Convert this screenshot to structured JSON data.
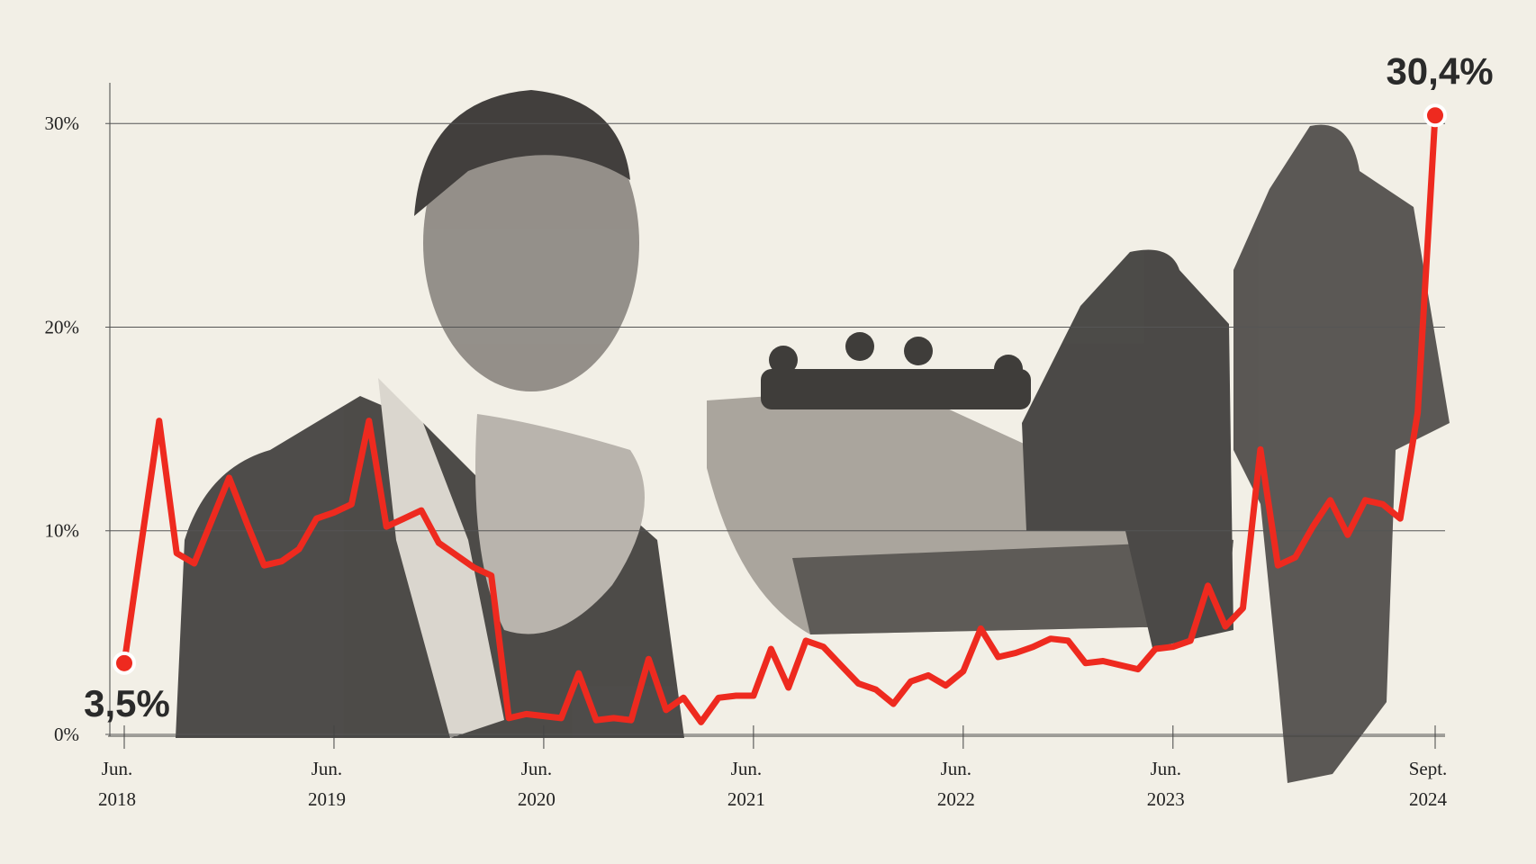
{
  "chart_data": {
    "type": "line",
    "color": "#ee2a1f",
    "grid": true,
    "x": [
      "2018-06",
      "2018-07",
      "2018-08",
      "2018-09",
      "2018-10",
      "2018-11",
      "2018-12",
      "2019-01",
      "2019-02",
      "2019-03",
      "2019-04",
      "2019-05",
      "2019-06",
      "2019-07",
      "2019-08",
      "2019-09",
      "2019-10",
      "2019-11",
      "2019-12",
      "2020-01",
      "2020-02",
      "2020-03",
      "2020-04",
      "2020-05",
      "2020-06",
      "2020-07",
      "2020-08",
      "2020-09",
      "2020-10",
      "2020-11",
      "2020-12",
      "2021-01",
      "2021-02",
      "2021-03",
      "2021-04",
      "2021-05",
      "2021-06",
      "2021-07",
      "2021-08",
      "2021-09",
      "2021-10",
      "2021-11",
      "2021-12",
      "2022-01",
      "2022-02",
      "2022-03",
      "2022-04",
      "2022-05",
      "2022-06",
      "2022-07",
      "2022-08",
      "2022-09",
      "2022-10",
      "2022-11",
      "2022-12",
      "2023-01",
      "2023-02",
      "2023-03",
      "2023-04",
      "2023-05",
      "2023-06",
      "2023-07",
      "2023-08",
      "2023-09",
      "2023-10",
      "2023-11",
      "2023-12",
      "2024-01",
      "2024-02",
      "2024-03",
      "2024-04",
      "2024-05",
      "2024-06",
      "2024-07",
      "2024-08",
      "2024-09"
    ],
    "values": [
      3.5,
      9.5,
      15.4,
      8.9,
      8.4,
      10.5,
      12.6,
      10.4,
      8.3,
      8.5,
      9.1,
      10.6,
      10.9,
      11.3,
      15.4,
      10.2,
      10.6,
      11.0,
      9.4,
      8.8,
      8.2,
      7.8,
      0.8,
      1.0,
      0.9,
      0.8,
      3.0,
      0.7,
      0.8,
      0.7,
      3.7,
      1.2,
      1.8,
      0.6,
      1.8,
      1.9,
      1.9,
      4.2,
      2.3,
      4.6,
      4.3,
      3.4,
      2.5,
      2.2,
      1.5,
      2.6,
      2.9,
      2.4,
      3.1,
      5.2,
      3.8,
      4.0,
      4.3,
      4.7,
      4.6,
      3.5,
      3.6,
      3.4,
      3.2,
      4.2,
      4.3,
      4.6,
      7.3,
      5.3,
      6.2,
      14.0,
      8.3,
      8.7,
      10.2,
      11.5,
      9.8,
      11.5,
      11.3,
      10.6,
      15.8,
      30.4
    ],
    "value_labels": [
      "3,5%",
      null,
      null,
      null,
      null,
      null,
      null,
      null,
      null,
      null,
      null,
      null,
      null,
      null,
      null,
      null,
      null,
      null,
      null,
      null,
      null,
      null,
      null,
      null,
      null,
      null,
      null,
      null,
      null,
      null,
      null,
      null,
      null,
      null,
      null,
      null,
      null,
      null,
      null,
      null,
      null,
      null,
      null,
      null,
      null,
      null,
      null,
      null,
      null,
      null,
      null,
      null,
      null,
      null,
      null,
      null,
      null,
      null,
      null,
      null,
      null,
      null,
      null,
      null,
      null,
      null,
      null,
      null,
      null,
      null,
      null,
      null,
      null,
      null,
      null,
      "30,4%"
    ],
    "ylim": [
      0,
      32
    ],
    "yticks": [
      {
        "value": 0,
        "label": "0%"
      },
      {
        "value": 10,
        "label": "10%"
      },
      {
        "value": 20,
        "label": "20%"
      },
      {
        "value": 30,
        "label": "30%"
      }
    ],
    "xticks": [
      {
        "value": "2018-06",
        "label": [
          "Jun.",
          "2018"
        ]
      },
      {
        "value": "2019-06",
        "label": [
          "Jun.",
          "2019"
        ]
      },
      {
        "value": "2020-06",
        "label": [
          "Jun.",
          "2020"
        ]
      },
      {
        "value": "2021-06",
        "label": [
          "Jun.",
          "2021"
        ]
      },
      {
        "value": "2022-06",
        "label": [
          "Jun.",
          "2022"
        ]
      },
      {
        "value": "2023-06",
        "label": [
          "Jun.",
          "2023"
        ]
      },
      {
        "value": "2024-09",
        "label": [
          "Sept.",
          "2024"
        ]
      }
    ]
  }
}
